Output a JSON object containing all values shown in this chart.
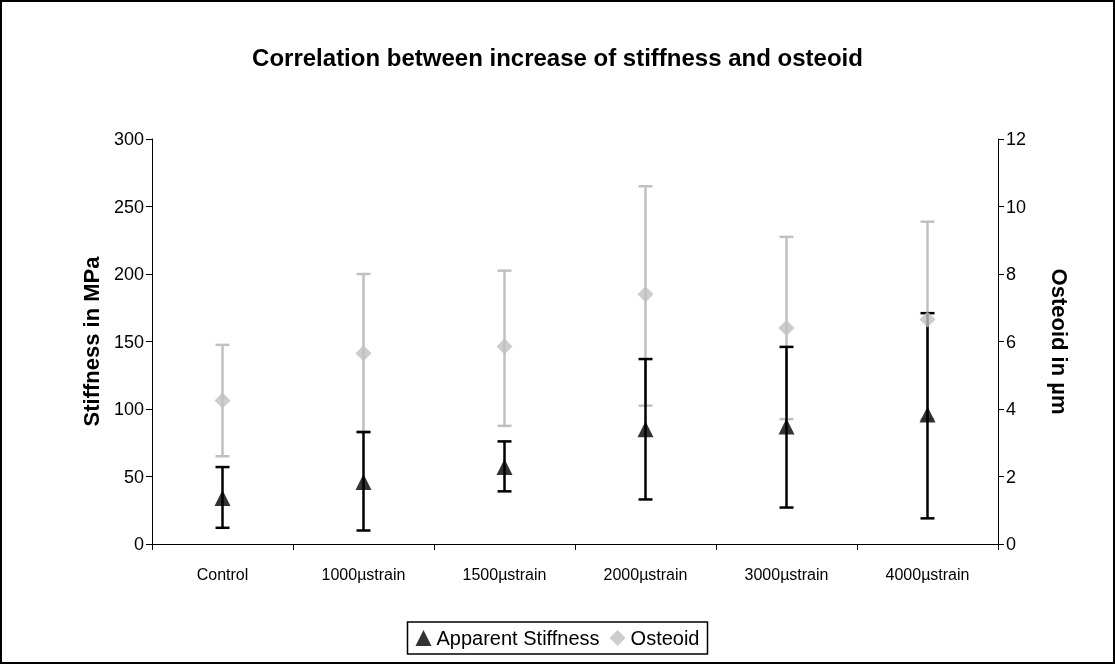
{
  "chart_data": {
    "type": "scatter",
    "title": "Correlation between increase of stiffness and osteoid",
    "ylabel": "Stiffness in MPa",
    "y2label": "Osteoid in µm",
    "categories": [
      "Control",
      "1000µstrain",
      "1500µstrain",
      "2000µstrain",
      "3000µstrain",
      "4000µstrain"
    ],
    "series": [
      {
        "name": "Apparent Stiffness",
        "color": "#000000",
        "marker": "triangle",
        "values": [
          34,
          46,
          57,
          85,
          87,
          96
        ],
        "errors": [
          [
            12,
            57
          ],
          [
            10,
            83
          ],
          [
            39,
            76
          ],
          [
            33,
            137
          ],
          [
            27,
            146
          ],
          [
            19,
            171
          ]
        ]
      },
      {
        "name": "Osteoid",
        "color": "#c0c0c0",
        "marker": "diamond",
        "axis": "y2",
        "values": [
          4.25,
          5.65,
          5.85,
          7.4,
          6.4,
          6.65
        ],
        "errors": [
          [
            2.6,
            5.9
          ],
          [
            3.3,
            8.0
          ],
          [
            3.5,
            8.1
          ],
          [
            4.1,
            10.6
          ],
          [
            3.7,
            9.1
          ],
          [
            3.7,
            9.55
          ]
        ]
      }
    ],
    "ylim": [
      0,
      300
    ],
    "yticks": [
      0,
      50,
      100,
      150,
      200,
      250,
      300
    ],
    "y2lim": [
      0,
      12
    ],
    "y2ticks": [
      0,
      2,
      4,
      6,
      8,
      10,
      12
    ],
    "grid": false,
    "legend": "bottom"
  }
}
